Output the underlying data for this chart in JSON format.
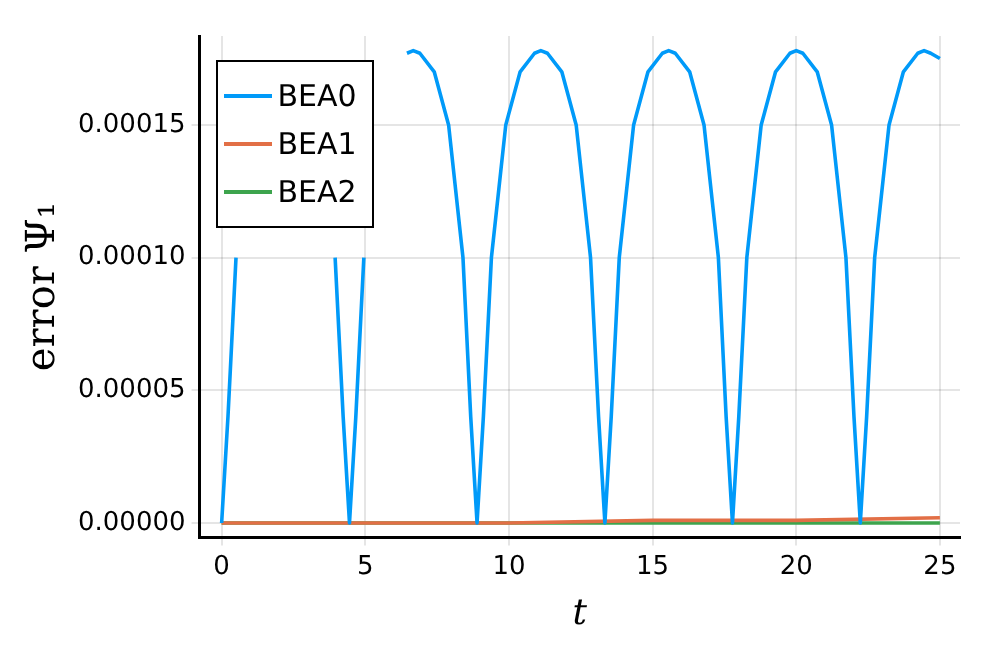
{
  "chart_data": {
    "type": "line",
    "xlabel": "t",
    "ylabel": "error Ψ₁",
    "series": [
      {
        "name": "BEA0",
        "color": "#009af9",
        "x": [
          0,
          0.22,
          0.5,
          1.0,
          1.5,
          2.0,
          2.22,
          2.45,
          2.95,
          3.45,
          3.95,
          4.23,
          4.45,
          4.67,
          4.95,
          5.45,
          5.95,
          6.45,
          6.67,
          6.9,
          7.4,
          7.9,
          8.4,
          8.67,
          8.89,
          9.11,
          9.39,
          9.89,
          10.39,
          10.89,
          11.11,
          11.34,
          11.84,
          12.34,
          12.84,
          13.12,
          13.34,
          13.56,
          13.84,
          14.34,
          14.84,
          15.34,
          15.56,
          15.79,
          16.29,
          16.79,
          17.29,
          17.56,
          17.78,
          18.0,
          18.28,
          18.78,
          19.28,
          19.78,
          20.0,
          20.23,
          20.73,
          21.23,
          21.73,
          22.01,
          22.23,
          22.45,
          22.73,
          23.23,
          23.73,
          24.23,
          24.45,
          24.68,
          25.0
        ],
        "values": [
          0,
          4e-05,
          0.0001,
          null,
          null,
          null,
          null,
          null,
          null,
          null,
          0.0001,
          4e-05,
          0,
          4e-05,
          0.0001,
          null,
          null,
          0.000177,
          0.000178,
          0.000177,
          0.00017,
          0.00015,
          0.0001,
          4e-05,
          0,
          4e-05,
          0.0001,
          0.00015,
          0.00017,
          0.000177,
          0.000178,
          0.000177,
          0.00017,
          0.00015,
          0.0001,
          4e-05,
          0,
          4e-05,
          0.0001,
          0.00015,
          0.00017,
          0.000177,
          0.000178,
          0.000177,
          0.00017,
          0.00015,
          0.0001,
          4e-05,
          0,
          4e-05,
          0.0001,
          0.00015,
          0.00017,
          0.000177,
          0.000178,
          0.000177,
          0.00017,
          0.00015,
          0.0001,
          4e-05,
          0,
          4e-05,
          0.0001,
          0.00015,
          0.00017,
          0.000177,
          0.000178,
          0.000177,
          0.000175
        ]
      },
      {
        "name": "BEA1",
        "color": "#e26f46",
        "x": [
          0,
          5,
          10,
          15,
          20,
          25
        ],
        "values": [
          0,
          0,
          0,
          1e-06,
          1e-06,
          2e-06
        ]
      },
      {
        "name": "BEA2",
        "color": "#3da44d",
        "x": [
          0,
          25
        ],
        "values": [
          0,
          0
        ]
      }
    ],
    "xlim": [
      -0.77,
      25.7
    ],
    "xticks": [
      0,
      5,
      10,
      15,
      20,
      25
    ],
    "ylim": [
      -5.5e-06,
      0.0001835
    ],
    "yticks": [
      {
        "value": 0,
        "label": "0.00000"
      },
      {
        "value": 5e-05,
        "label": "0.00005"
      },
      {
        "value": 0.0001,
        "label": "0.00010"
      },
      {
        "value": 0.00015,
        "label": "0.00015"
      }
    ],
    "grid": true,
    "legend": "top left",
    "marker": "none",
    "line_style": "solid"
  }
}
